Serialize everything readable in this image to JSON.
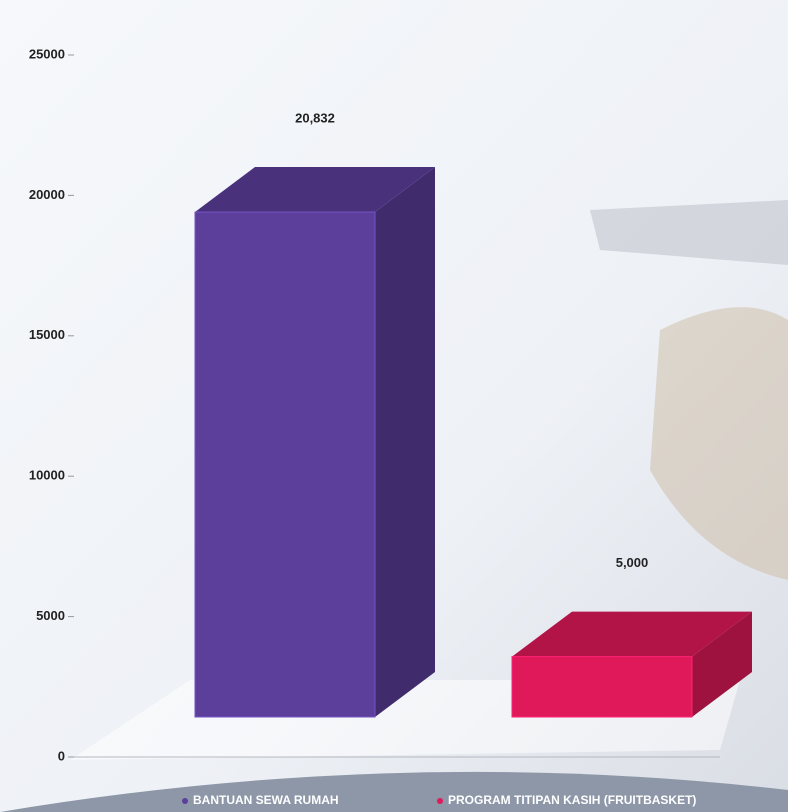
{
  "chart_data": {
    "type": "bar3d",
    "categories": [
      null
    ],
    "series": [
      {
        "name": "BANTUAN SEWA RUMAH",
        "color": "#5b3f9a",
        "values": [
          20832
        ],
        "value_labels": [
          "20,832"
        ]
      },
      {
        "name": "PROGRAM TITIPAN KASIH (FRUITBASKET)",
        "color": "#e0195a",
        "values": [
          5000
        ],
        "value_labels": [
          "5,000"
        ]
      }
    ],
    "ylim": [
      0,
      25000
    ],
    "yticks": [
      0,
      5000,
      10000,
      15000,
      20000,
      25000
    ],
    "grid": false
  }
}
